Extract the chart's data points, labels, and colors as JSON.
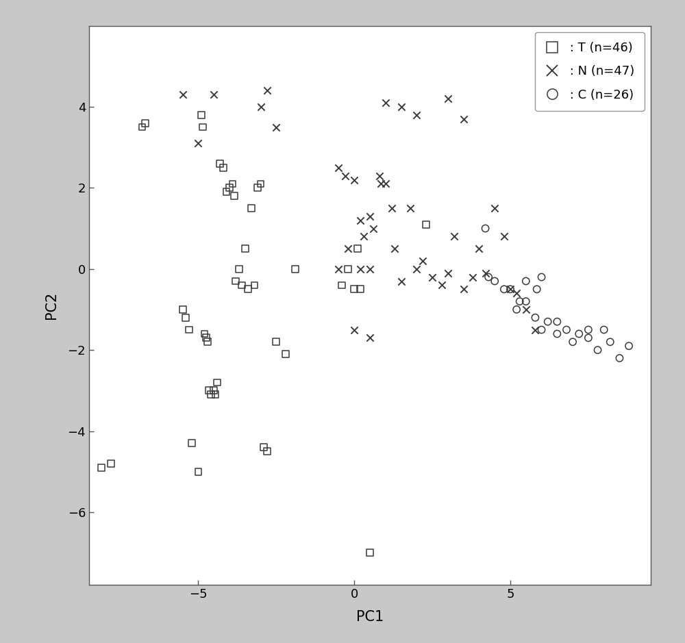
{
  "T_x": [
    -8.1,
    -7.8,
    -6.8,
    -6.7,
    -5.5,
    -5.4,
    -5.3,
    -5.2,
    -5.0,
    -4.9,
    -4.85,
    -4.8,
    -4.75,
    -4.7,
    -4.65,
    -4.6,
    -4.5,
    -4.45,
    -4.4,
    -4.3,
    -4.2,
    -4.1,
    -4.0,
    -3.9,
    -3.85,
    -3.8,
    -3.7,
    -3.6,
    -3.5,
    -3.4,
    -3.3,
    -3.2,
    -3.1,
    -3.0,
    -2.9,
    -2.8,
    -2.5,
    -2.2,
    -1.9,
    -0.4,
    -0.2,
    0.0,
    0.1,
    0.2,
    2.3,
    0.5
  ],
  "T_y": [
    -4.9,
    -4.8,
    3.5,
    3.6,
    -1.0,
    -1.2,
    -1.5,
    -4.3,
    -5.0,
    3.8,
    3.5,
    -1.6,
    -1.7,
    -1.8,
    -3.0,
    -3.1,
    -3.0,
    -3.1,
    -2.8,
    2.6,
    2.5,
    1.9,
    2.0,
    2.1,
    1.8,
    -0.3,
    0.0,
    -0.4,
    0.5,
    -0.5,
    1.5,
    -0.4,
    2.0,
    2.1,
    -4.4,
    -4.5,
    -1.8,
    -2.1,
    0.0,
    -0.4,
    0.0,
    -0.5,
    0.5,
    -0.5,
    1.1,
    -7.0
  ],
  "N_x": [
    -5.5,
    -5.0,
    -4.5,
    -3.0,
    -2.8,
    -2.5,
    -0.5,
    -0.3,
    -0.2,
    0.0,
    0.2,
    0.3,
    0.5,
    0.6,
    0.8,
    0.85,
    1.0,
    1.2,
    1.3,
    1.5,
    1.8,
    2.0,
    2.2,
    2.5,
    2.8,
    3.0,
    3.2,
    3.5,
    3.8,
    4.0,
    4.2,
    4.5,
    4.8,
    5.0,
    5.2,
    5.5,
    5.8,
    3.0,
    3.5,
    0.5,
    0.2,
    -0.5,
    1.0,
    1.5,
    2.0,
    0.0,
    0.5
  ],
  "N_y": [
    4.3,
    3.1,
    4.3,
    4.0,
    4.4,
    3.5,
    2.5,
    2.3,
    0.5,
    2.2,
    1.2,
    0.8,
    1.3,
    1.0,
    2.3,
    2.1,
    2.1,
    1.5,
    0.5,
    -0.3,
    1.5,
    0.0,
    0.2,
    -0.2,
    -0.4,
    -0.1,
    0.8,
    -0.5,
    -0.2,
    0.5,
    -0.1,
    1.5,
    0.8,
    -0.5,
    -0.6,
    -1.0,
    -1.5,
    4.2,
    3.7,
    0.0,
    0.0,
    0.0,
    4.1,
    4.0,
    3.8,
    -1.5,
    -1.7
  ],
  "C_x": [
    4.3,
    4.5,
    5.0,
    5.2,
    5.5,
    5.8,
    5.85,
    6.0,
    6.2,
    6.5,
    6.8,
    7.0,
    7.2,
    7.5,
    7.8,
    8.0,
    8.2,
    8.5,
    4.8,
    5.3,
    5.5,
    6.0,
    6.5,
    7.5,
    8.8,
    4.2
  ],
  "C_y": [
    -0.2,
    -0.3,
    -0.5,
    -1.0,
    -0.8,
    -1.2,
    -0.5,
    -1.5,
    -1.3,
    -1.6,
    -1.5,
    -1.8,
    -1.6,
    -1.7,
    -2.0,
    -1.5,
    -1.8,
    -2.2,
    -0.5,
    -0.8,
    -0.3,
    -0.2,
    -1.3,
    -1.5,
    -1.9,
    1.0
  ],
  "xlabel": "PC1",
  "ylabel": "PC2",
  "xlim": [
    -8.5,
    9.5
  ],
  "ylim": [
    -7.8,
    6.0
  ],
  "xticks": [
    -5,
    0,
    5
  ],
  "yticks": [
    -6,
    -4,
    -2,
    0,
    2,
    4
  ],
  "marker_color": "#3a3a3a",
  "background_color": "#ffffff",
  "outer_bg": "#c8c8c8",
  "legend_T": " : T (n=46)",
  "legend_N": " : N (n=47)",
  "legend_C": " : C (n=26)"
}
